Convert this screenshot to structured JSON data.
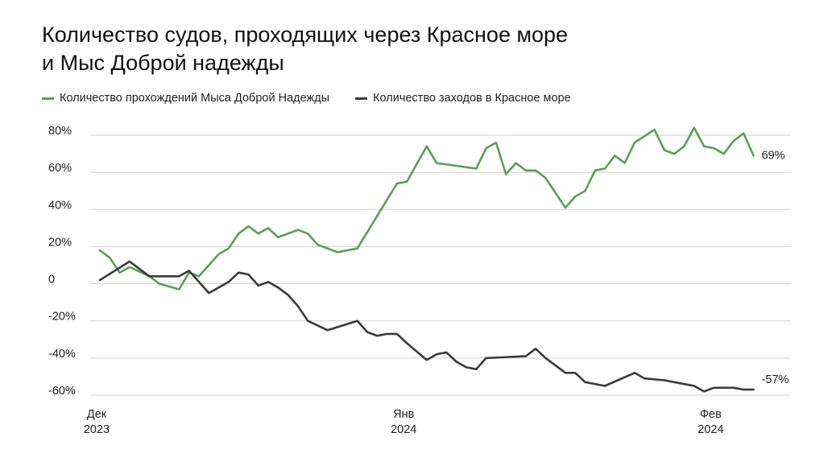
{
  "chart_data": {
    "type": "line",
    "title_line1": "Количество судов, проходящих через Красное море",
    "title_line2": "и Мыс Доброй надежды",
    "y_ticks": [
      {
        "value": 80,
        "label": "80%"
      },
      {
        "value": 60,
        "label": "60%"
      },
      {
        "value": 40,
        "label": "40%"
      },
      {
        "value": 20,
        "label": "20%"
      },
      {
        "value": 0,
        "label": "0"
      },
      {
        "value": -20,
        "label": "-20%"
      },
      {
        "value": -40,
        "label": "-40%"
      },
      {
        "value": -60,
        "label": "-60%"
      }
    ],
    "ylim": [
      -60,
      80
    ],
    "grid": true,
    "legend_position": "top-left",
    "x_ticks": [
      {
        "date": "2023-12-01",
        "line1": "Дек",
        "line2": "2023"
      },
      {
        "date": "2024-01-01",
        "line1": "Янв",
        "line2": "2024"
      },
      {
        "date": "2024-02-01",
        "line1": "Фев",
        "line2": "2024"
      }
    ],
    "xlim": [
      "2023-12-01",
      "2024-02-03"
    ],
    "series": [
      {
        "name": "Количество прохождений Мыса Доброй Надежды",
        "color": "#5a9e57",
        "end_label": "69%",
        "points": [
          [
            "2023-12-01",
            18
          ],
          [
            "2023-12-02",
            14
          ],
          [
            "2023-12-03",
            6
          ],
          [
            "2023-12-04",
            9
          ],
          [
            "2023-12-06",
            4
          ],
          [
            "2023-12-07",
            0
          ],
          [
            "2023-12-09",
            -3
          ],
          [
            "2023-12-10",
            6
          ],
          [
            "2023-12-11",
            4
          ],
          [
            "2023-12-13",
            16
          ],
          [
            "2023-12-14",
            19
          ],
          [
            "2023-12-15",
            27
          ],
          [
            "2023-12-16",
            31
          ],
          [
            "2023-12-17",
            27
          ],
          [
            "2023-12-18",
            30
          ],
          [
            "2023-12-19",
            25
          ],
          [
            "2023-12-21",
            29
          ],
          [
            "2023-12-22",
            27
          ],
          [
            "2023-12-23",
            21
          ],
          [
            "2023-12-25",
            17
          ],
          [
            "2023-12-27",
            19
          ],
          [
            "2023-12-31",
            54
          ],
          [
            "2024-01-01",
            55
          ],
          [
            "2024-01-03",
            74
          ],
          [
            "2024-01-04",
            65
          ],
          [
            "2024-01-08",
            62
          ],
          [
            "2024-01-09",
            73
          ],
          [
            "2024-01-10",
            76
          ],
          [
            "2024-01-11",
            59
          ],
          [
            "2024-01-12",
            65
          ],
          [
            "2024-01-13",
            61
          ],
          [
            "2024-01-14",
            61
          ],
          [
            "2024-01-15",
            57
          ],
          [
            "2024-01-17",
            41
          ],
          [
            "2024-01-18",
            47
          ],
          [
            "2024-01-19",
            50
          ],
          [
            "2024-01-20",
            61
          ],
          [
            "2024-01-21",
            62
          ],
          [
            "2024-01-22",
            69
          ],
          [
            "2024-01-23",
            65
          ],
          [
            "2024-01-24",
            76
          ],
          [
            "2024-01-26",
            83
          ],
          [
            "2024-01-27",
            72
          ],
          [
            "2024-01-28",
            70
          ],
          [
            "2024-01-29",
            74
          ],
          [
            "2024-01-30",
            84
          ],
          [
            "2024-01-31",
            74
          ],
          [
            "2024-02-01",
            73
          ],
          [
            "2024-02-02",
            70
          ],
          [
            "2024-02-03",
            77
          ],
          [
            "2024-02-04",
            81
          ],
          [
            "2024-02-05",
            69
          ]
        ]
      },
      {
        "name": "Количество заходов в Красное море",
        "color": "#3a3a3a",
        "end_label": "-57%",
        "points": [
          [
            "2023-12-01",
            2
          ],
          [
            "2023-12-04",
            12
          ],
          [
            "2023-12-06",
            4
          ],
          [
            "2023-12-09",
            4
          ],
          [
            "2023-12-10",
            7
          ],
          [
            "2023-12-12",
            -5
          ],
          [
            "2023-12-14",
            1
          ],
          [
            "2023-12-15",
            6
          ],
          [
            "2023-12-16",
            5
          ],
          [
            "2023-12-17",
            -1
          ],
          [
            "2023-12-18",
            1
          ],
          [
            "2023-12-19",
            -2
          ],
          [
            "2023-12-20",
            -6
          ],
          [
            "2023-12-21",
            -12
          ],
          [
            "2023-12-22",
            -20
          ],
          [
            "2023-12-24",
            -25
          ],
          [
            "2023-12-27",
            -20
          ],
          [
            "2023-12-28",
            -26
          ],
          [
            "2023-12-29",
            -28
          ],
          [
            "2023-12-30",
            -27
          ],
          [
            "2023-12-31",
            -27
          ],
          [
            "2024-01-01",
            -32
          ],
          [
            "2024-01-03",
            -41
          ],
          [
            "2024-01-04",
            -38
          ],
          [
            "2024-01-05",
            -37
          ],
          [
            "2024-01-06",
            -42
          ],
          [
            "2024-01-07",
            -45
          ],
          [
            "2024-01-08",
            -46
          ],
          [
            "2024-01-09",
            -40
          ],
          [
            "2024-01-13",
            -39
          ],
          [
            "2024-01-14",
            -35
          ],
          [
            "2024-01-15",
            -40
          ],
          [
            "2024-01-16",
            -44
          ],
          [
            "2024-01-17",
            -48
          ],
          [
            "2024-01-18",
            -48
          ],
          [
            "2024-01-19",
            -53
          ],
          [
            "2024-01-21",
            -55
          ],
          [
            "2024-01-24",
            -48
          ],
          [
            "2024-01-25",
            -51
          ],
          [
            "2024-01-27",
            -52
          ],
          [
            "2024-01-29",
            -54
          ],
          [
            "2024-01-30",
            -55
          ],
          [
            "2024-01-31",
            -58
          ],
          [
            "2024-02-01",
            -56
          ],
          [
            "2024-02-03",
            -56
          ],
          [
            "2024-02-04",
            -57
          ],
          [
            "2024-02-05",
            -57
          ]
        ]
      }
    ]
  }
}
